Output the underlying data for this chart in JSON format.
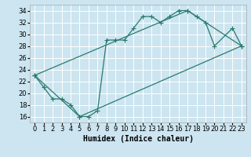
{
  "xlabel": "Humidex (Indice chaleur)",
  "background_color": "#cce5f0",
  "grid_color": "#ffffff",
  "line_color": "#2a7a6e",
  "xlim": [
    -0.5,
    23.5
  ],
  "ylim": [
    15.0,
    35.0
  ],
  "xticks": [
    0,
    1,
    2,
    3,
    4,
    5,
    6,
    7,
    8,
    9,
    10,
    11,
    12,
    13,
    14,
    15,
    16,
    17,
    18,
    19,
    20,
    21,
    22,
    23
  ],
  "yticks": [
    16,
    18,
    20,
    22,
    24,
    26,
    28,
    30,
    32,
    34
  ],
  "curve_x": [
    0,
    1,
    2,
    3,
    4,
    5,
    6,
    7,
    8,
    9,
    10,
    11,
    12,
    13,
    14,
    15,
    16,
    17,
    18,
    19,
    20,
    22,
    23
  ],
  "curve_y": [
    23,
    21,
    19,
    19,
    18,
    16,
    16,
    17,
    29,
    29,
    29,
    31,
    33,
    33,
    32,
    33,
    34,
    34,
    33,
    32,
    28,
    31,
    28
  ],
  "bottom_line_x": [
    0,
    5,
    23
  ],
  "bottom_line_y": [
    23,
    16,
    28
  ],
  "top_line_x": [
    0,
    17,
    23
  ],
  "top_line_y": [
    23,
    34,
    28
  ],
  "tick_fontsize": 6,
  "xlabel_fontsize": 7,
  "line_width": 0.9,
  "marker_size": 4
}
